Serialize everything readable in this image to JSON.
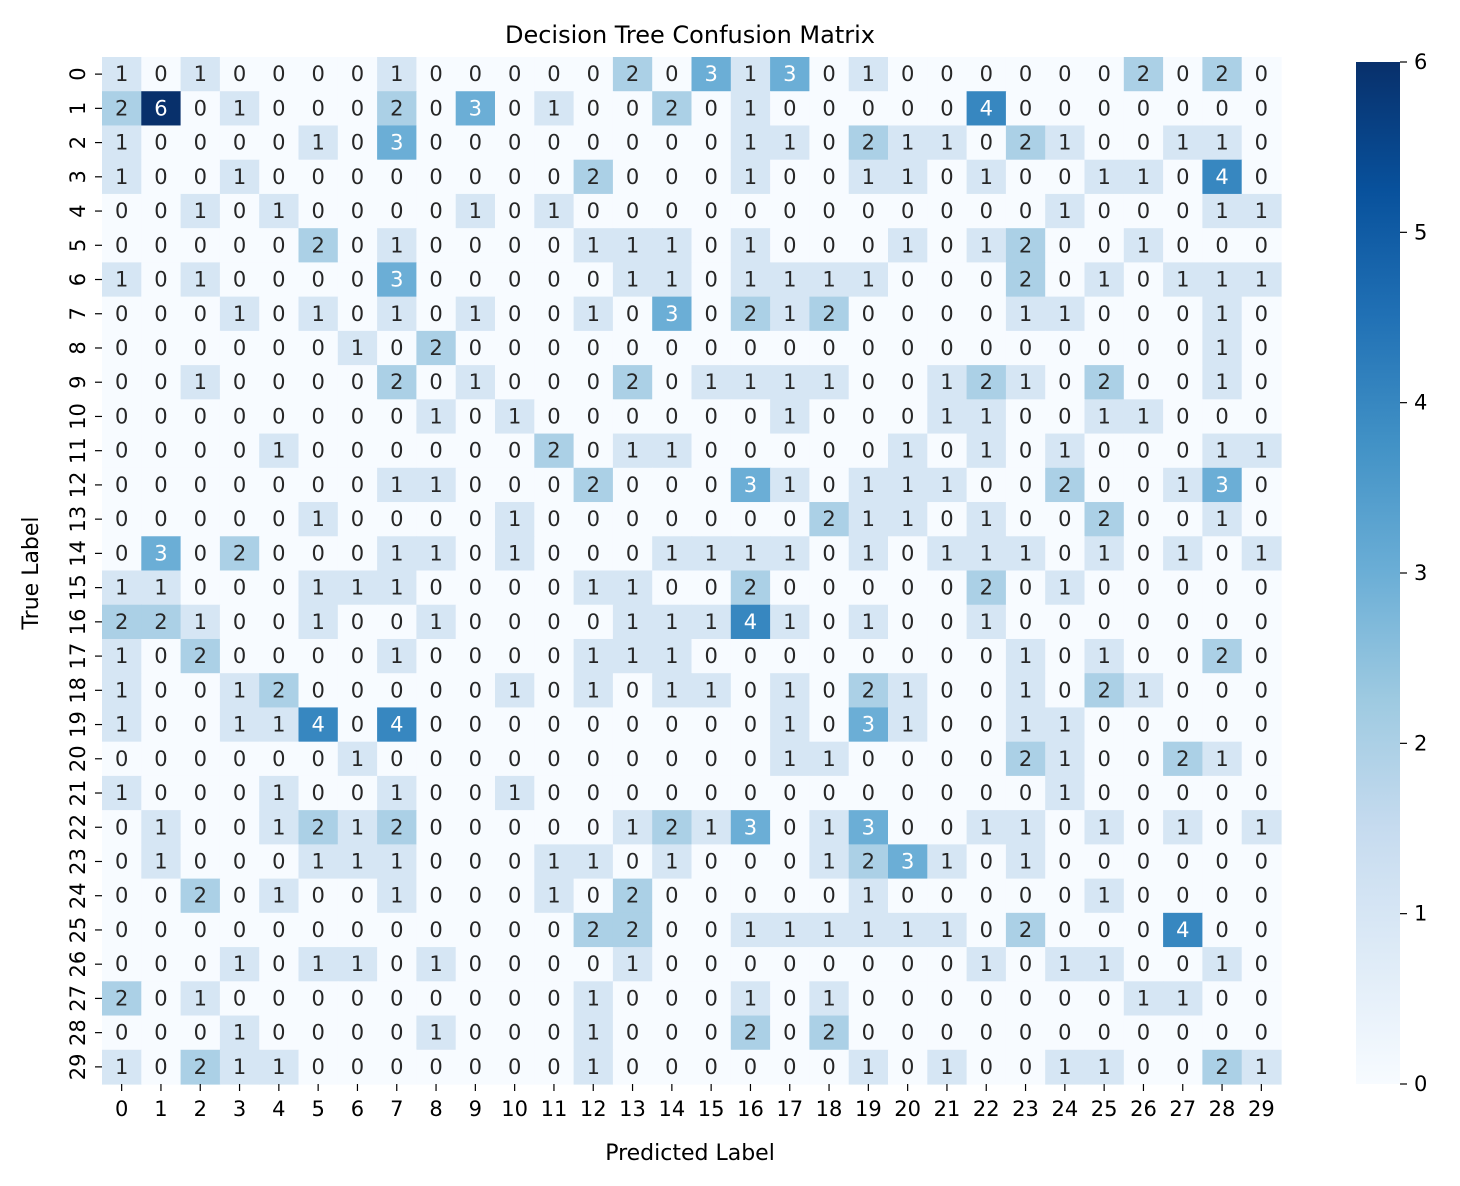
{
  "chart_data": {
    "type": "heatmap",
    "title": "Decision Tree Confusion Matrix",
    "xlabel": "Predicted Label",
    "ylabel": "True Label",
    "x_categories": [
      "0",
      "1",
      "2",
      "3",
      "4",
      "5",
      "6",
      "7",
      "8",
      "9",
      "10",
      "11",
      "12",
      "13",
      "14",
      "15",
      "16",
      "17",
      "18",
      "19",
      "20",
      "21",
      "22",
      "23",
      "24",
      "25",
      "26",
      "27",
      "28",
      "29"
    ],
    "y_categories": [
      "0",
      "1",
      "2",
      "3",
      "4",
      "5",
      "6",
      "7",
      "8",
      "9",
      "10",
      "11",
      "12",
      "13",
      "14",
      "15",
      "16",
      "17",
      "18",
      "19",
      "20",
      "21",
      "22",
      "23",
      "24",
      "25",
      "26",
      "27",
      "28",
      "29"
    ],
    "y_tick_labels": [
      "0",
      "1",
      "2",
      "3",
      "4",
      "5",
      "6",
      "7",
      "8",
      "9",
      "10",
      "11",
      "12",
      "13",
      "14",
      "15",
      "16",
      "17",
      "18",
      "19",
      "20",
      "21",
      "22",
      "23",
      "24",
      "25",
      "26",
      "27",
      "28",
      "29"
    ],
    "values": [
      [
        1,
        0,
        1,
        0,
        0,
        0,
        0,
        1,
        0,
        0,
        0,
        0,
        0,
        2,
        0,
        3,
        1,
        3,
        0,
        1,
        0,
        0,
        0,
        0,
        0,
        0,
        2,
        0,
        2,
        0
      ],
      [
        2,
        6,
        0,
        1,
        0,
        0,
        0,
        2,
        0,
        3,
        0,
        1,
        0,
        0,
        2,
        0,
        1,
        0,
        0,
        0,
        0,
        0,
        4,
        0,
        0,
        0,
        0,
        0,
        0,
        0
      ],
      [
        1,
        0,
        0,
        0,
        0,
        1,
        0,
        3,
        0,
        0,
        0,
        0,
        0,
        0,
        0,
        0,
        1,
        1,
        0,
        2,
        1,
        1,
        0,
        2,
        1,
        0,
        0,
        1,
        1,
        0
      ],
      [
        1,
        0,
        0,
        1,
        0,
        0,
        0,
        0,
        0,
        0,
        0,
        0,
        2,
        0,
        0,
        0,
        1,
        0,
        0,
        1,
        1,
        0,
        1,
        0,
        0,
        1,
        1,
        0,
        4,
        0
      ],
      [
        0,
        0,
        1,
        0,
        1,
        0,
        0,
        0,
        0,
        1,
        0,
        1,
        0,
        0,
        0,
        0,
        0,
        0,
        0,
        0,
        0,
        0,
        0,
        0,
        1,
        0,
        0,
        0,
        1,
        1
      ],
      [
        0,
        0,
        0,
        0,
        0,
        2,
        0,
        1,
        0,
        0,
        0,
        0,
        1,
        1,
        1,
        0,
        1,
        0,
        0,
        0,
        1,
        0,
        1,
        2,
        0,
        0,
        1,
        0,
        0,
        0
      ],
      [
        1,
        0,
        1,
        0,
        0,
        0,
        0,
        3,
        0,
        0,
        0,
        0,
        0,
        1,
        1,
        0,
        1,
        1,
        1,
        1,
        0,
        0,
        0,
        2,
        0,
        1,
        0,
        1,
        1,
        1
      ],
      [
        0,
        0,
        0,
        1,
        0,
        1,
        0,
        1,
        0,
        1,
        0,
        0,
        1,
        0,
        3,
        0,
        2,
        1,
        2,
        0,
        0,
        0,
        0,
        1,
        1,
        0,
        0,
        0,
        1,
        0
      ],
      [
        0,
        0,
        0,
        0,
        0,
        0,
        1,
        0,
        2,
        0,
        0,
        0,
        0,
        0,
        0,
        0,
        0,
        0,
        0,
        0,
        0,
        0,
        0,
        0,
        0,
        0,
        0,
        0,
        1,
        0
      ],
      [
        0,
        0,
        1,
        0,
        0,
        0,
        0,
        2,
        0,
        1,
        0,
        0,
        0,
        2,
        0,
        1,
        1,
        1,
        1,
        0,
        0,
        1,
        2,
        1,
        0,
        2,
        0,
        0,
        1,
        0
      ],
      [
        0,
        0,
        0,
        0,
        0,
        0,
        0,
        0,
        1,
        0,
        1,
        0,
        0,
        0,
        0,
        0,
        0,
        1,
        0,
        0,
        0,
        1,
        1,
        0,
        0,
        1,
        1,
        0,
        0,
        0
      ],
      [
        0,
        0,
        0,
        0,
        1,
        0,
        0,
        0,
        0,
        0,
        0,
        2,
        0,
        1,
        1,
        0,
        0,
        0,
        0,
        0,
        1,
        0,
        1,
        0,
        1,
        0,
        0,
        0,
        1,
        1
      ],
      [
        0,
        0,
        0,
        0,
        0,
        0,
        0,
        1,
        1,
        0,
        0,
        0,
        2,
        0,
        0,
        0,
        3,
        1,
        0,
        1,
        1,
        1,
        0,
        0,
        2,
        0,
        0,
        1,
        3,
        0
      ],
      [
        0,
        0,
        0,
        0,
        0,
        1,
        0,
        0,
        0,
        0,
        1,
        0,
        0,
        0,
        0,
        0,
        0,
        0,
        2,
        1,
        1,
        0,
        1,
        0,
        0,
        2,
        0,
        0,
        1,
        0
      ],
      [
        0,
        3,
        0,
        2,
        0,
        0,
        0,
        1,
        1,
        0,
        1,
        0,
        0,
        0,
        1,
        1,
        1,
        1,
        0,
        1,
        0,
        1,
        1,
        1,
        0,
        1,
        0,
        1,
        0,
        1
      ],
      [
        1,
        1,
        0,
        0,
        0,
        1,
        1,
        1,
        0,
        0,
        0,
        0,
        1,
        1,
        0,
        0,
        2,
        0,
        0,
        0,
        0,
        0,
        2,
        0,
        1,
        0,
        0,
        0,
        0,
        0
      ],
      [
        2,
        2,
        1,
        0,
        0,
        1,
        0,
        0,
        1,
        0,
        0,
        0,
        0,
        1,
        1,
        1,
        4,
        1,
        0,
        1,
        0,
        0,
        1,
        0,
        0,
        0,
        0,
        0,
        0,
        0
      ],
      [
        1,
        0,
        2,
        0,
        0,
        0,
        0,
        1,
        0,
        0,
        0,
        0,
        1,
        1,
        1,
        0,
        0,
        0,
        0,
        0,
        0,
        0,
        0,
        1,
        0,
        1,
        0,
        0,
        2,
        0
      ],
      [
        1,
        0,
        0,
        1,
        2,
        0,
        0,
        0,
        0,
        0,
        1,
        0,
        1,
        0,
        1,
        1,
        0,
        1,
        0,
        2,
        1,
        0,
        0,
        1,
        0,
        2,
        1,
        0,
        0,
        0
      ],
      [
        1,
        0,
        0,
        1,
        1,
        4,
        0,
        4,
        0,
        0,
        0,
        0,
        0,
        0,
        0,
        0,
        0,
        1,
        0,
        3,
        1,
        0,
        0,
        1,
        1,
        0,
        0,
        0,
        0,
        0
      ],
      [
        0,
        0,
        0,
        0,
        0,
        0,
        1,
        0,
        0,
        0,
        0,
        0,
        0,
        0,
        0,
        0,
        0,
        1,
        1,
        0,
        0,
        0,
        0,
        2,
        1,
        0,
        0,
        2,
        1,
        0
      ],
      [
        1,
        0,
        0,
        0,
        1,
        0,
        0,
        1,
        0,
        0,
        1,
        0,
        0,
        0,
        0,
        0,
        0,
        0,
        0,
        0,
        0,
        0,
        0,
        0,
        1,
        0,
        0,
        0,
        0,
        0
      ],
      [
        0,
        1,
        0,
        0,
        1,
        2,
        1,
        2,
        0,
        0,
        0,
        0,
        0,
        1,
        2,
        1,
        3,
        0,
        1,
        3,
        0,
        0,
        1,
        1,
        0,
        1,
        0,
        1,
        0,
        1
      ],
      [
        0,
        1,
        0,
        0,
        0,
        1,
        1,
        1,
        0,
        0,
        0,
        1,
        1,
        0,
        1,
        0,
        0,
        0,
        1,
        2,
        3,
        1,
        0,
        1,
        0,
        0,
        0,
        0,
        0,
        0
      ],
      [
        0,
        0,
        2,
        0,
        1,
        0,
        0,
        1,
        0,
        0,
        0,
        1,
        0,
        2,
        0,
        0,
        0,
        0,
        0,
        1,
        0,
        0,
        0,
        0,
        0,
        1,
        0,
        0,
        0,
        0
      ],
      [
        0,
        0,
        0,
        0,
        0,
        0,
        0,
        0,
        0,
        0,
        0,
        0,
        2,
        2,
        0,
        0,
        1,
        1,
        1,
        1,
        1,
        1,
        0,
        2,
        0,
        0,
        0,
        4,
        0,
        0
      ],
      [
        0,
        0,
        0,
        1,
        0,
        1,
        1,
        0,
        1,
        0,
        0,
        0,
        0,
        1,
        0,
        0,
        0,
        0,
        0,
        0,
        0,
        0,
        1,
        0,
        1,
        1,
        0,
        0,
        1,
        0
      ],
      [
        2,
        0,
        1,
        0,
        0,
        0,
        0,
        0,
        0,
        0,
        0,
        0,
        1,
        0,
        0,
        0,
        1,
        0,
        1,
        0,
        0,
        0,
        0,
        0,
        0,
        0,
        1,
        1,
        0,
        0
      ],
      [
        0,
        0,
        0,
        1,
        0,
        0,
        0,
        0,
        1,
        0,
        0,
        0,
        1,
        0,
        0,
        0,
        2,
        0,
        2,
        0,
        0,
        0,
        0,
        0,
        0,
        0,
        0,
        0,
        0,
        0
      ],
      [
        1,
        0,
        2,
        1,
        1,
        0,
        0,
        0,
        0,
        0,
        0,
        0,
        1,
        0,
        0,
        0,
        0,
        0,
        0,
        1,
        0,
        1,
        0,
        0,
        1,
        1,
        0,
        0,
        2,
        1
      ]
    ],
    "vmin": 0,
    "vmax": 6,
    "colormap": "Blues",
    "colorbar_ticks": [
      0,
      1,
      2,
      3,
      4,
      5,
      6
    ]
  }
}
